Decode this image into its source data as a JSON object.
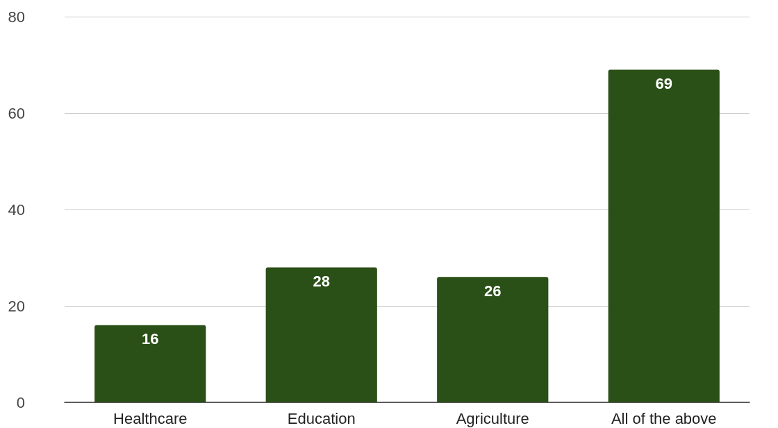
{
  "chart_data": {
    "type": "bar",
    "categories": [
      "Healthcare",
      "Education",
      "Agriculture",
      "All of the above"
    ],
    "values": [
      16,
      28,
      26,
      69
    ],
    "color": "#2a4f17",
    "ylim": [
      0,
      80
    ],
    "yticks": [
      0,
      20,
      40,
      60,
      80
    ],
    "grid": "y",
    "data_labels": true
  }
}
